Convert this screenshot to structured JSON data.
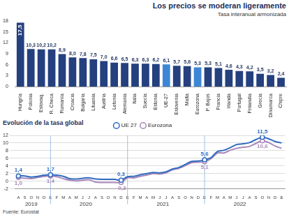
{
  "chart_data": [
    {
      "type": "bar",
      "title": "Los precios se moderan ligeramente",
      "subtitle": "Tasa interanual armonizada",
      "categories": [
        "Hungría",
        "Polonia",
        "Eslovaq.",
        "R. Checa",
        "Rumanía",
        "Croacia",
        "Bulgaria",
        "Lituania",
        "Austria",
        "Letonia",
        "Alemania",
        "Italia",
        "Suecia",
        "Estonia",
        "UE-27",
        "Eslovenia",
        "Malta",
        "Eurozona",
        "P. Bajos",
        "Francia",
        "Irlanda",
        "Portugal",
        "Finlandia",
        "Grecia",
        "Dinamarca",
        "Chipre"
      ],
      "values": [
        17.5,
        10.3,
        10.2,
        10.2,
        8.9,
        8.0,
        7.8,
        7.5,
        7.0,
        6.6,
        6.5,
        6.3,
        6.3,
        6.2,
        6.1,
        5.7,
        5.6,
        5.3,
        5.3,
        5.1,
        4.6,
        4.3,
        4.2,
        3.5,
        3.2,
        2.4
      ],
      "value_labels": [
        "17,5",
        "10,3",
        "10,2",
        "10,2",
        "8,9",
        "8,0",
        "7,8",
        "7,5",
        "7,0",
        "6,6",
        "6,5",
        "6,3",
        "6,3",
        "6,2",
        "6,1",
        "5,7",
        "5,6",
        "5,3",
        "5,3",
        "5,1",
        "4,6",
        "4,3",
        "4,2",
        "3,5",
        "3,2",
        "2,4"
      ],
      "colors": [
        "#24407f",
        "#24407f",
        "#24407f",
        "#24407f",
        "#24407f",
        "#24407f",
        "#24407f",
        "#24407f",
        "#24407f",
        "#24407f",
        "#24407f",
        "#24407f",
        "#24407f",
        "#24407f",
        "#3d86d6",
        "#24407f",
        "#24407f",
        "#3d86d6",
        "#24407f",
        "#24407f",
        "#24407f",
        "#24407f",
        "#24407f",
        "#24407f",
        "#24407f",
        "#24407f"
      ],
      "ylim": [
        0,
        18
      ],
      "yticks": [
        0,
        3,
        6,
        9,
        12,
        15,
        18
      ],
      "grid": false,
      "data_labels": true
    },
    {
      "type": "line",
      "title": "Evolución de la tasa global",
      "x": [
        "A",
        "S",
        "O",
        "N",
        "D",
        "E",
        "F",
        "M",
        "A",
        "M",
        "J",
        "J",
        "A",
        "S",
        "O",
        "N",
        "D",
        "E",
        "F",
        "M",
        "A",
        "M",
        "J",
        "J",
        "A",
        "S",
        "O",
        "N",
        "D",
        "E",
        "F",
        "M",
        "A",
        "M",
        "J",
        "J",
        "A",
        "S",
        "O",
        "N",
        "D",
        "E"
      ],
      "year_groups": [
        {
          "label": "2019",
          "count": 5
        },
        {
          "label": "2020",
          "count": 12
        },
        {
          "label": "2021",
          "count": 12
        },
        {
          "label": "2022",
          "count": 12
        }
      ],
      "series": [
        {
          "name": "UE 27",
          "color": "#2f6bc0",
          "marker": "circle",
          "values": [
            1.4,
            1.4,
            1.1,
            1.3,
            1.6,
            1.7,
            1.6,
            1.3,
            0.7,
            0.6,
            0.8,
            0.9,
            0.6,
            0.5,
            0.5,
            0.5,
            0.3,
            1.2,
            1.3,
            1.7,
            2.0,
            2.3,
            2.2,
            2.5,
            3.2,
            3.6,
            4.4,
            5.2,
            5.3,
            5.6,
            6.2,
            7.8,
            8.1,
            8.8,
            9.6,
            9.8,
            10.1,
            10.9,
            11.5,
            11.1,
            10.4,
            10.0
          ]
        },
        {
          "name": "Eurozona",
          "color": "#a887b8",
          "marker": "circle",
          "values": [
            1.0,
            0.8,
            0.7,
            1.0,
            1.3,
            1.4,
            1.2,
            0.7,
            0.3,
            0.1,
            0.3,
            0.4,
            -0.2,
            -0.3,
            -0.3,
            -0.3,
            -0.3,
            0.9,
            0.9,
            1.3,
            1.6,
            2.0,
            1.9,
            2.2,
            3.0,
            3.4,
            4.1,
            4.9,
            5.0,
            5.1,
            5.9,
            7.4,
            7.4,
            8.1,
            8.6,
            8.9,
            9.1,
            9.9,
            10.6,
            10.1,
            9.2,
            8.6
          ]
        }
      ],
      "annotations": [
        {
          "index": 0,
          "values": [
            1.4,
            1.0
          ],
          "labels": [
            "1,4",
            "1,0"
          ]
        },
        {
          "index": 5,
          "values": [
            1.7,
            1.4
          ],
          "labels": [
            "1,7",
            "1,4"
          ]
        },
        {
          "index": 16,
          "values": [
            0.3,
            -0.3
          ],
          "labels": [
            "0,3",
            "-0,3"
          ]
        },
        {
          "index": 29,
          "values": [
            5.6,
            5.1
          ],
          "labels": [
            "5,6",
            "5,1"
          ]
        },
        {
          "index": 38,
          "values": [
            11.5,
            10.6
          ],
          "labels": [
            "11,5",
            "10,6"
          ]
        }
      ],
      "ylim": [
        -2,
        12
      ],
      "yticks": [
        -2,
        0,
        2,
        4,
        6,
        8,
        10,
        12
      ],
      "grid": true,
      "legend": "top"
    }
  ],
  "source": "Fuente: Eurostat"
}
